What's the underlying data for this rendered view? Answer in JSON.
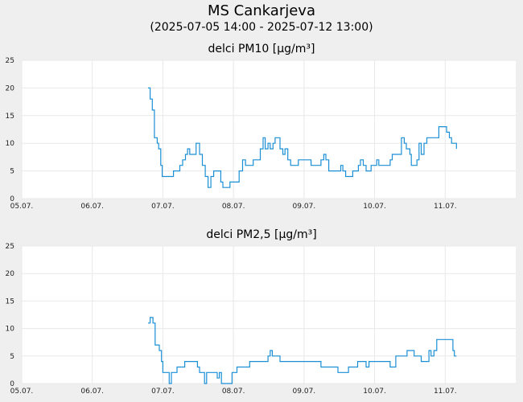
{
  "header": {
    "title": "MS Cankarjeva",
    "subtitle": "(2025-07-05 14:00 - 2025-07-12 13:00)"
  },
  "colors": {
    "line": "#1a8fd6",
    "plot_bg": "#ffffff",
    "grid": "#e8e8e8",
    "page_bg": "#efefef"
  },
  "chart_data": [
    {
      "type": "line",
      "title": "delci PM10 [µg/m³]",
      "x_tick_labels": [
        "05.07.",
        "06.07.",
        "07.07.",
        "08.07.",
        "09.07.",
        "10.07.",
        "11.07."
      ],
      "y_tick_labels": [
        "0",
        "5",
        "10",
        "15",
        "20",
        "25"
      ],
      "xlim_days": [
        0,
        7
      ],
      "ylim": [
        0,
        25
      ],
      "grid": true,
      "series": [
        {
          "points": [
            [
              1.79,
              20
            ],
            [
              1.82,
              18
            ],
            [
              1.85,
              16
            ],
            [
              1.88,
              11
            ],
            [
              1.92,
              10
            ],
            [
              1.94,
              9
            ],
            [
              1.97,
              6
            ],
            [
              1.99,
              4
            ],
            [
              2.06,
              4
            ],
            [
              2.13,
              4
            ],
            [
              2.15,
              5
            ],
            [
              2.2,
              5
            ],
            [
              2.24,
              6
            ],
            [
              2.28,
              7
            ],
            [
              2.32,
              8
            ],
            [
              2.35,
              9
            ],
            [
              2.38,
              8
            ],
            [
              2.43,
              8
            ],
            [
              2.47,
              10
            ],
            [
              2.52,
              8
            ],
            [
              2.56,
              6
            ],
            [
              2.6,
              4
            ],
            [
              2.64,
              2
            ],
            [
              2.68,
              4
            ],
            [
              2.72,
              5
            ],
            [
              2.77,
              5
            ],
            [
              2.82,
              3
            ],
            [
              2.85,
              2
            ],
            [
              2.92,
              2
            ],
            [
              2.95,
              3
            ],
            [
              3.03,
              3
            ],
            [
              3.08,
              5
            ],
            [
              3.13,
              7
            ],
            [
              3.17,
              6
            ],
            [
              3.25,
              6
            ],
            [
              3.28,
              7
            ],
            [
              3.35,
              7
            ],
            [
              3.38,
              9
            ],
            [
              3.42,
              11
            ],
            [
              3.45,
              9
            ],
            [
              3.49,
              10
            ],
            [
              3.52,
              9
            ],
            [
              3.56,
              10
            ],
            [
              3.59,
              11
            ],
            [
              3.63,
              11
            ],
            [
              3.66,
              9
            ],
            [
              3.7,
              8
            ],
            [
              3.73,
              9
            ],
            [
              3.77,
              7
            ],
            [
              3.81,
              6
            ],
            [
              3.88,
              6
            ],
            [
              3.92,
              7
            ],
            [
              4.06,
              7
            ],
            [
              4.1,
              6
            ],
            [
              4.2,
              6
            ],
            [
              4.24,
              7
            ],
            [
              4.28,
              8
            ],
            [
              4.31,
              7
            ],
            [
              4.35,
              5
            ],
            [
              4.48,
              5
            ],
            [
              4.52,
              6
            ],
            [
              4.55,
              5
            ],
            [
              4.59,
              4
            ],
            [
              4.66,
              4
            ],
            [
              4.69,
              5
            ],
            [
              4.73,
              5
            ],
            [
              4.77,
              6
            ],
            [
              4.8,
              7
            ],
            [
              4.84,
              6
            ],
            [
              4.88,
              5
            ],
            [
              4.92,
              5
            ],
            [
              4.95,
              6
            ],
            [
              5.0,
              6
            ],
            [
              5.03,
              7
            ],
            [
              5.06,
              6
            ],
            [
              5.18,
              6
            ],
            [
              5.22,
              7
            ],
            [
              5.25,
              8
            ],
            [
              5.35,
              8
            ],
            [
              5.38,
              11
            ],
            [
              5.42,
              10
            ],
            [
              5.45,
              9
            ],
            [
              5.5,
              8
            ],
            [
              5.52,
              6
            ],
            [
              5.57,
              6
            ],
            [
              5.6,
              7
            ],
            [
              5.63,
              10
            ],
            [
              5.66,
              8
            ],
            [
              5.7,
              10
            ],
            [
              5.74,
              11
            ],
            [
              5.88,
              11
            ],
            [
              5.91,
              13
            ],
            [
              5.98,
              13
            ],
            [
              6.02,
              12
            ],
            [
              6.06,
              11
            ],
            [
              6.09,
              10
            ],
            [
              6.13,
              10
            ],
            [
              6.16,
              9
            ]
          ]
        }
      ]
    },
    {
      "type": "line",
      "title": "delci PM2,5 [µg/m³]",
      "x_tick_labels": [
        "05.07.",
        "06.07.",
        "07.07.",
        "08.07.",
        "09.07.",
        "10.07.",
        "11.07."
      ],
      "y_tick_labels": [
        "0",
        "5",
        "10",
        "15",
        "20",
        "25"
      ],
      "xlim_days": [
        0,
        7
      ],
      "ylim": [
        0,
        25
      ],
      "grid": true,
      "series": [
        {
          "points": [
            [
              1.79,
              11
            ],
            [
              1.82,
              12
            ],
            [
              1.86,
              11
            ],
            [
              1.89,
              7
            ],
            [
              1.92,
              7
            ],
            [
              1.95,
              6
            ],
            [
              1.98,
              4
            ],
            [
              2.0,
              2
            ],
            [
              2.06,
              2
            ],
            [
              2.09,
              0
            ],
            [
              2.12,
              2
            ],
            [
              2.16,
              2
            ],
            [
              2.2,
              3
            ],
            [
              2.28,
              3
            ],
            [
              2.31,
              4
            ],
            [
              2.45,
              4
            ],
            [
              2.49,
              3
            ],
            [
              2.52,
              2
            ],
            [
              2.56,
              2
            ],
            [
              2.59,
              0
            ],
            [
              2.62,
              2
            ],
            [
              2.74,
              2
            ],
            [
              2.77,
              1
            ],
            [
              2.8,
              2
            ],
            [
              2.83,
              0
            ],
            [
              2.95,
              0
            ],
            [
              2.98,
              2
            ],
            [
              3.02,
              2
            ],
            [
              3.05,
              3
            ],
            [
              3.2,
              3
            ],
            [
              3.23,
              4
            ],
            [
              3.45,
              4
            ],
            [
              3.49,
              5
            ],
            [
              3.52,
              6
            ],
            [
              3.55,
              5
            ],
            [
              3.63,
              5
            ],
            [
              3.66,
              4
            ],
            [
              4.2,
              4
            ],
            [
              4.24,
              3
            ],
            [
              4.45,
              3
            ],
            [
              4.48,
              2
            ],
            [
              4.6,
              2
            ],
            [
              4.63,
              3
            ],
            [
              4.72,
              3
            ],
            [
              4.76,
              4
            ],
            [
              4.85,
              4
            ],
            [
              4.88,
              3
            ],
            [
              4.92,
              4
            ],
            [
              5.18,
              4
            ],
            [
              5.22,
              3
            ],
            [
              5.26,
              3
            ],
            [
              5.3,
              5
            ],
            [
              5.42,
              5
            ],
            [
              5.46,
              6
            ],
            [
              5.52,
              6
            ],
            [
              5.56,
              5
            ],
            [
              5.62,
              5
            ],
            [
              5.66,
              4
            ],
            [
              5.74,
              4
            ],
            [
              5.77,
              6
            ],
            [
              5.8,
              5
            ],
            [
              5.84,
              6
            ],
            [
              5.88,
              8
            ],
            [
              6.08,
              8
            ],
            [
              6.11,
              6
            ],
            [
              6.13,
              5
            ],
            [
              6.16,
              5
            ]
          ]
        }
      ]
    }
  ]
}
